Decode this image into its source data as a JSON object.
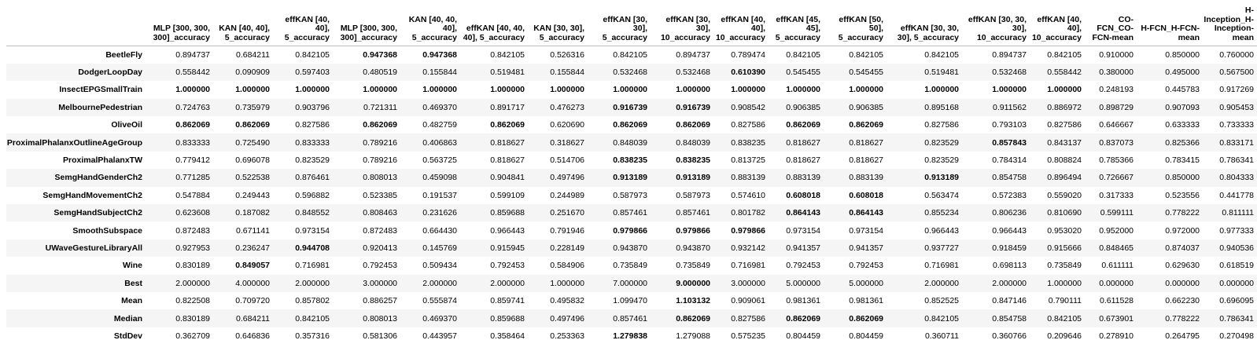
{
  "columns": [
    "MLP [300, 300, 300]_accuracy",
    "KAN [40, 40], 5_accuracy",
    "effKAN [40, 40], 5_accuracy",
    "MLP [300, 300, 300]_accuracy",
    "KAN [40, 40, 40], 5_accuracy",
    "effKAN [40, 40, 40], 5_accuracy",
    "KAN [30, 30], 5_accuracy",
    "effKAN [30, 30], 5_accuracy",
    "effKAN [30, 30], 10_accuracy",
    "effKAN [40, 40], 10_accuracy",
    "effKAN [45, 45], 5_accuracy",
    "effKAN [50, 50], 5_accuracy",
    "effKAN [30, 30, 30], 5_accuracy",
    "effKAN [30, 30, 30], 10_accuracy",
    "effKAN [40, 40], 10_accuracy",
    "CO-FCN_CO-FCN-mean",
    "H-FCN_H-FCN-mean",
    "H-Inception_H-Inception-mean"
  ],
  "rows": [
    {
      "label": "BeetleFly",
      "values": [
        "0.894737",
        "0.684211",
        "0.842105",
        "0.947368",
        "0.947368",
        "0.842105",
        "0.526316",
        "0.842105",
        "0.894737",
        "0.789474",
        "0.842105",
        "0.842105",
        "0.842105",
        "0.894737",
        "0.842105",
        "0.910000",
        "0.850000",
        "0.760000"
      ],
      "bold": [
        3,
        4
      ]
    },
    {
      "label": "DodgerLoopDay",
      "values": [
        "0.558442",
        "0.090909",
        "0.597403",
        "0.480519",
        "0.155844",
        "0.519481",
        "0.155844",
        "0.532468",
        "0.532468",
        "0.610390",
        "0.545455",
        "0.545455",
        "0.519481",
        "0.532468",
        "0.558442",
        "0.380000",
        "0.495000",
        "0.567500"
      ],
      "bold": [
        9
      ]
    },
    {
      "label": "InsectEPGSmallTrain",
      "values": [
        "1.000000",
        "1.000000",
        "1.000000",
        "1.000000",
        "1.000000",
        "1.000000",
        "1.000000",
        "1.000000",
        "1.000000",
        "1.000000",
        "1.000000",
        "1.000000",
        "1.000000",
        "1.000000",
        "1.000000",
        "0.248193",
        "0.445783",
        "0.917269"
      ],
      "bold": [
        0,
        1,
        2,
        3,
        4,
        5,
        6,
        7,
        8,
        9,
        10,
        11,
        12,
        13,
        14
      ]
    },
    {
      "label": "MelbournePedestrian",
      "values": [
        "0.724763",
        "0.735979",
        "0.903796",
        "0.721311",
        "0.469370",
        "0.891717",
        "0.476273",
        "0.916739",
        "0.916739",
        "0.908542",
        "0.906385",
        "0.906385",
        "0.895168",
        "0.911562",
        "0.886972",
        "0.898729",
        "0.907093",
        "0.905453"
      ],
      "bold": [
        7,
        8
      ]
    },
    {
      "label": "OliveOil",
      "values": [
        "0.862069",
        "0.862069",
        "0.827586",
        "0.862069",
        "0.482759",
        "0.862069",
        "0.620690",
        "0.862069",
        "0.862069",
        "0.827586",
        "0.862069",
        "0.862069",
        "0.827586",
        "0.793103",
        "0.827586",
        "0.646667",
        "0.633333",
        "0.733333"
      ],
      "bold": [
        0,
        1,
        3,
        5,
        7,
        8,
        10,
        11
      ]
    },
    {
      "label": "ProximalPhalanxOutlineAgeGroup",
      "values": [
        "0.833333",
        "0.725490",
        "0.833333",
        "0.789216",
        "0.406863",
        "0.818627",
        "0.318627",
        "0.848039",
        "0.848039",
        "0.838235",
        "0.818627",
        "0.818627",
        "0.823529",
        "0.857843",
        "0.843137",
        "0.837073",
        "0.825366",
        "0.833171"
      ],
      "bold": [
        13
      ]
    },
    {
      "label": "ProximalPhalanxTW",
      "values": [
        "0.779412",
        "0.696078",
        "0.823529",
        "0.789216",
        "0.563725",
        "0.818627",
        "0.514706",
        "0.838235",
        "0.838235",
        "0.813725",
        "0.818627",
        "0.818627",
        "0.823529",
        "0.784314",
        "0.808824",
        "0.785366",
        "0.783415",
        "0.786341"
      ],
      "bold": [
        7,
        8
      ]
    },
    {
      "label": "SemgHandGenderCh2",
      "values": [
        "0.771285",
        "0.522538",
        "0.876461",
        "0.808013",
        "0.459098",
        "0.904841",
        "0.497496",
        "0.913189",
        "0.913189",
        "0.883139",
        "0.883139",
        "0.883139",
        "0.913189",
        "0.854758",
        "0.896494",
        "0.726667",
        "0.850000",
        "0.804333"
      ],
      "bold": [
        7,
        8,
        12
      ]
    },
    {
      "label": "SemgHandMovementCh2",
      "values": [
        "0.547884",
        "0.249443",
        "0.596882",
        "0.523385",
        "0.191537",
        "0.599109",
        "0.244989",
        "0.587973",
        "0.587973",
        "0.574610",
        "0.608018",
        "0.608018",
        "0.563474",
        "0.572383",
        "0.559020",
        "0.317333",
        "0.523556",
        "0.441778"
      ],
      "bold": [
        10,
        11
      ]
    },
    {
      "label": "SemgHandSubjectCh2",
      "values": [
        "0.623608",
        "0.187082",
        "0.848552",
        "0.808463",
        "0.231626",
        "0.859688",
        "0.251670",
        "0.857461",
        "0.857461",
        "0.801782",
        "0.864143",
        "0.864143",
        "0.855234",
        "0.806236",
        "0.810690",
        "0.599111",
        "0.778222",
        "0.811111"
      ],
      "bold": [
        10,
        11
      ]
    },
    {
      "label": "SmoothSubspace",
      "values": [
        "0.872483",
        "0.671141",
        "0.973154",
        "0.872483",
        "0.664430",
        "0.966443",
        "0.791946",
        "0.979866",
        "0.979866",
        "0.979866",
        "0.973154",
        "0.973154",
        "0.966443",
        "0.966443",
        "0.953020",
        "0.952000",
        "0.972000",
        "0.977333"
      ],
      "bold": [
        7,
        8,
        9
      ]
    },
    {
      "label": "UWaveGestureLibraryAll",
      "values": [
        "0.927953",
        "0.236247",
        "0.944708",
        "0.920413",
        "0.145769",
        "0.915945",
        "0.228149",
        "0.943870",
        "0.943870",
        "0.932142",
        "0.941357",
        "0.941357",
        "0.937727",
        "0.918459",
        "0.915666",
        "0.848465",
        "0.874037",
        "0.940536"
      ],
      "bold": [
        2
      ]
    },
    {
      "label": "Wine",
      "values": [
        "0.830189",
        "0.849057",
        "0.716981",
        "0.792453",
        "0.509434",
        "0.792453",
        "0.584906",
        "0.735849",
        "0.735849",
        "0.716981",
        "0.792453",
        "0.792453",
        "0.716981",
        "0.698113",
        "0.735849",
        "0.611111",
        "0.629630",
        "0.618519"
      ],
      "bold": [
        1
      ]
    },
    {
      "label": "Best",
      "values": [
        "2.000000",
        "4.000000",
        "2.000000",
        "3.000000",
        "2.000000",
        "2.000000",
        "1.000000",
        "7.000000",
        "9.000000",
        "3.000000",
        "5.000000",
        "5.000000",
        "2.000000",
        "2.000000",
        "1.000000",
        "0.000000",
        "0.000000",
        "0.000000"
      ],
      "bold": [
        8
      ]
    },
    {
      "label": "Mean",
      "values": [
        "0.822508",
        "0.709720",
        "0.857802",
        "0.886257",
        "0.555874",
        "0.859741",
        "0.495832",
        "1.099470",
        "1.103132",
        "0.909061",
        "0.981361",
        "0.981361",
        "0.852525",
        "0.847146",
        "0.790111",
        "0.611528",
        "0.662230",
        "0.696095"
      ],
      "bold": [
        8
      ]
    },
    {
      "label": "Median",
      "values": [
        "0.830189",
        "0.684211",
        "0.842105",
        "0.808013",
        "0.469370",
        "0.859688",
        "0.497496",
        "0.857461",
        "0.862069",
        "0.827586",
        "0.862069",
        "0.862069",
        "0.842105",
        "0.854758",
        "0.842105",
        "0.673901",
        "0.778222",
        "0.786341"
      ],
      "bold": [
        8,
        10,
        11
      ]
    },
    {
      "label": "StdDev",
      "values": [
        "0.362709",
        "0.646836",
        "0.357316",
        "0.581306",
        "0.443957",
        "0.358464",
        "0.253363",
        "1.279838",
        "1.279088",
        "0.575235",
        "0.804459",
        "0.804459",
        "0.360711",
        "0.360766",
        "0.209646",
        "0.278910",
        "0.264795",
        "0.270498"
      ],
      "bold": [
        7
      ]
    }
  ]
}
